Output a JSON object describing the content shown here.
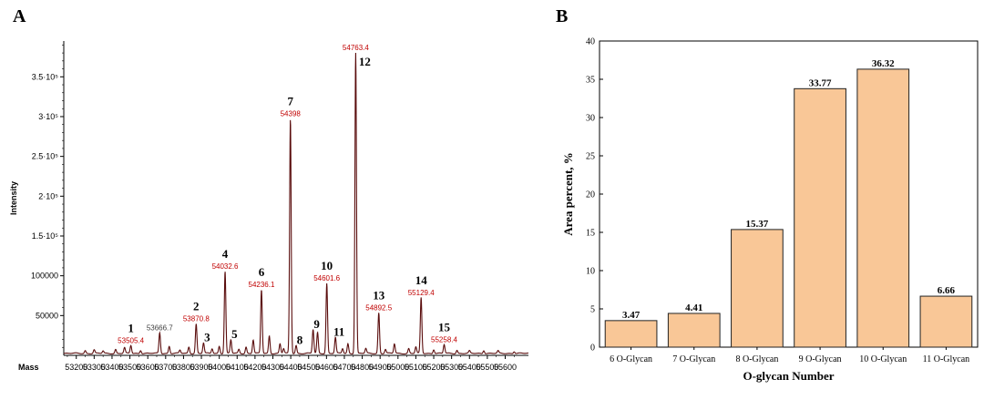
{
  "panels": {
    "a_label": "A",
    "b_label": "B"
  },
  "colors": {
    "spectrum_line": "#5a0d0d",
    "mass_label": "#c00000",
    "mass_label_gray": "#404040",
    "bar_fill": "#f9c797",
    "bar_stroke": "#222222",
    "axis": "#000000"
  },
  "chart_data": [
    {
      "type": "line",
      "title": "",
      "xlabel": "Mass",
      "ylabel": "Intensity",
      "xlim": [
        53130,
        55730
      ],
      "ylim": [
        0,
        395000
      ],
      "x_ticks": [
        53200,
        53300,
        53400,
        53500,
        53600,
        53700,
        53800,
        53900,
        54000,
        54100,
        54200,
        54300,
        54400,
        54500,
        54600,
        54700,
        54800,
        54900,
        55000,
        55100,
        55200,
        55300,
        55400,
        55500,
        55600
      ],
      "y_ticks": [
        {
          "value": 50000,
          "label": "50000"
        },
        {
          "value": 100000,
          "label": "100000"
        },
        {
          "value": 150000,
          "label": "1.5·10⁵"
        },
        {
          "value": 200000,
          "label": "2·10⁵"
        },
        {
          "value": 250000,
          "label": "2.5·10⁵"
        },
        {
          "value": 300000,
          "label": "3·10⁵"
        },
        {
          "value": 350000,
          "label": "3.5·10⁵"
        }
      ],
      "labeled_peaks": [
        {
          "id": "1",
          "mass": 53505.4,
          "label": "53505.4",
          "intensity": 10000,
          "color": "red"
        },
        {
          "id": "",
          "mass": 53666.7,
          "label": "53666.7",
          "intensity": 26000,
          "color": "gray"
        },
        {
          "id": "2",
          "mass": 53870.8,
          "label": "53870.8",
          "intensity": 37000,
          "color": "red"
        },
        {
          "id": "3",
          "mass": 53912,
          "label": "",
          "intensity": 13000,
          "color": "red"
        },
        {
          "id": "4",
          "mass": 54032.6,
          "label": "54032.6",
          "intensity": 103000,
          "color": "red"
        },
        {
          "id": "5",
          "mass": 54065,
          "label": "",
          "intensity": 17000,
          "color": "red"
        },
        {
          "id": "6",
          "mass": 54236.1,
          "label": "54236.1",
          "intensity": 80000,
          "color": "red"
        },
        {
          "id": "7",
          "mass": 54398,
          "label": "54398",
          "intensity": 295000,
          "color": "red"
        },
        {
          "id": "8",
          "mass": 54430,
          "label": "",
          "intensity": 10000,
          "color": "red"
        },
        {
          "id": "9",
          "mass": 54525,
          "label": "",
          "intensity": 30000,
          "color": "red"
        },
        {
          "id": "10",
          "mass": 54601.6,
          "label": "54601.6",
          "intensity": 88000,
          "color": "red"
        },
        {
          "id": "11",
          "mass": 54650,
          "label": "",
          "intensity": 20000,
          "color": "red"
        },
        {
          "id": "12",
          "mass": 54763.4,
          "label": "54763.4",
          "intensity": 378000,
          "color": "red"
        },
        {
          "id": "13",
          "mass": 54892.5,
          "label": "54892.5",
          "intensity": 51000,
          "color": "red"
        },
        {
          "id": "14",
          "mass": 55129.4,
          "label": "55129.4",
          "intensity": 70000,
          "color": "red"
        },
        {
          "id": "15",
          "mass": 55258.4,
          "label": "55258.4",
          "intensity": 11000,
          "color": "red"
        }
      ],
      "minor_peaks": [
        {
          "mass": 53250,
          "intensity": 3500
        },
        {
          "mass": 53300,
          "intensity": 4500
        },
        {
          "mass": 53350,
          "intensity": 3000
        },
        {
          "mass": 53420,
          "intensity": 5000
        },
        {
          "mass": 53470,
          "intensity": 7000
        },
        {
          "mass": 53560,
          "intensity": 4000
        },
        {
          "mass": 53720,
          "intensity": 9000
        },
        {
          "mass": 53780,
          "intensity": 4000
        },
        {
          "mass": 53830,
          "intensity": 8000
        },
        {
          "mass": 53960,
          "intensity": 6000
        },
        {
          "mass": 54000,
          "intensity": 9000
        },
        {
          "mass": 54110,
          "intensity": 5000
        },
        {
          "mass": 54150,
          "intensity": 8000
        },
        {
          "mass": 54190,
          "intensity": 17000
        },
        {
          "mass": 54280,
          "intensity": 22000
        },
        {
          "mass": 54340,
          "intensity": 12000
        },
        {
          "mass": 54360,
          "intensity": 6000
        },
        {
          "mass": 54550,
          "intensity": 26000
        },
        {
          "mass": 54690,
          "intensity": 6000
        },
        {
          "mass": 54720,
          "intensity": 12000
        },
        {
          "mass": 54820,
          "intensity": 6000
        },
        {
          "mass": 54930,
          "intensity": 5000
        },
        {
          "mass": 54980,
          "intensity": 12000
        },
        {
          "mass": 55060,
          "intensity": 6000
        },
        {
          "mass": 55100,
          "intensity": 8000
        },
        {
          "mass": 55200,
          "intensity": 5000
        },
        {
          "mass": 55330,
          "intensity": 4000
        },
        {
          "mass": 55400,
          "intensity": 3000
        },
        {
          "mass": 55480,
          "intensity": 4000
        },
        {
          "mass": 55560,
          "intensity": 3000
        },
        {
          "mass": 55650,
          "intensity": 2500
        }
      ]
    },
    {
      "type": "bar",
      "title": "",
      "xlabel": "O-glycan Number",
      "ylabel": "Area percent, %",
      "categories": [
        "6 O-Glycan",
        "7 O-Glycan",
        "8 O-Glycan",
        "9 O-Glycan",
        "10 O-Glycan",
        "11 O-Glycan"
      ],
      "values": [
        3.47,
        4.41,
        15.37,
        33.77,
        36.32,
        6.66
      ],
      "value_labels": [
        "3.47",
        "4.41",
        "15.37",
        "33.77",
        "36.32",
        "6.66"
      ],
      "ylim": [
        0,
        40
      ],
      "y_ticks": [
        0,
        5,
        10,
        15,
        20,
        25,
        30,
        35,
        40
      ]
    }
  ]
}
